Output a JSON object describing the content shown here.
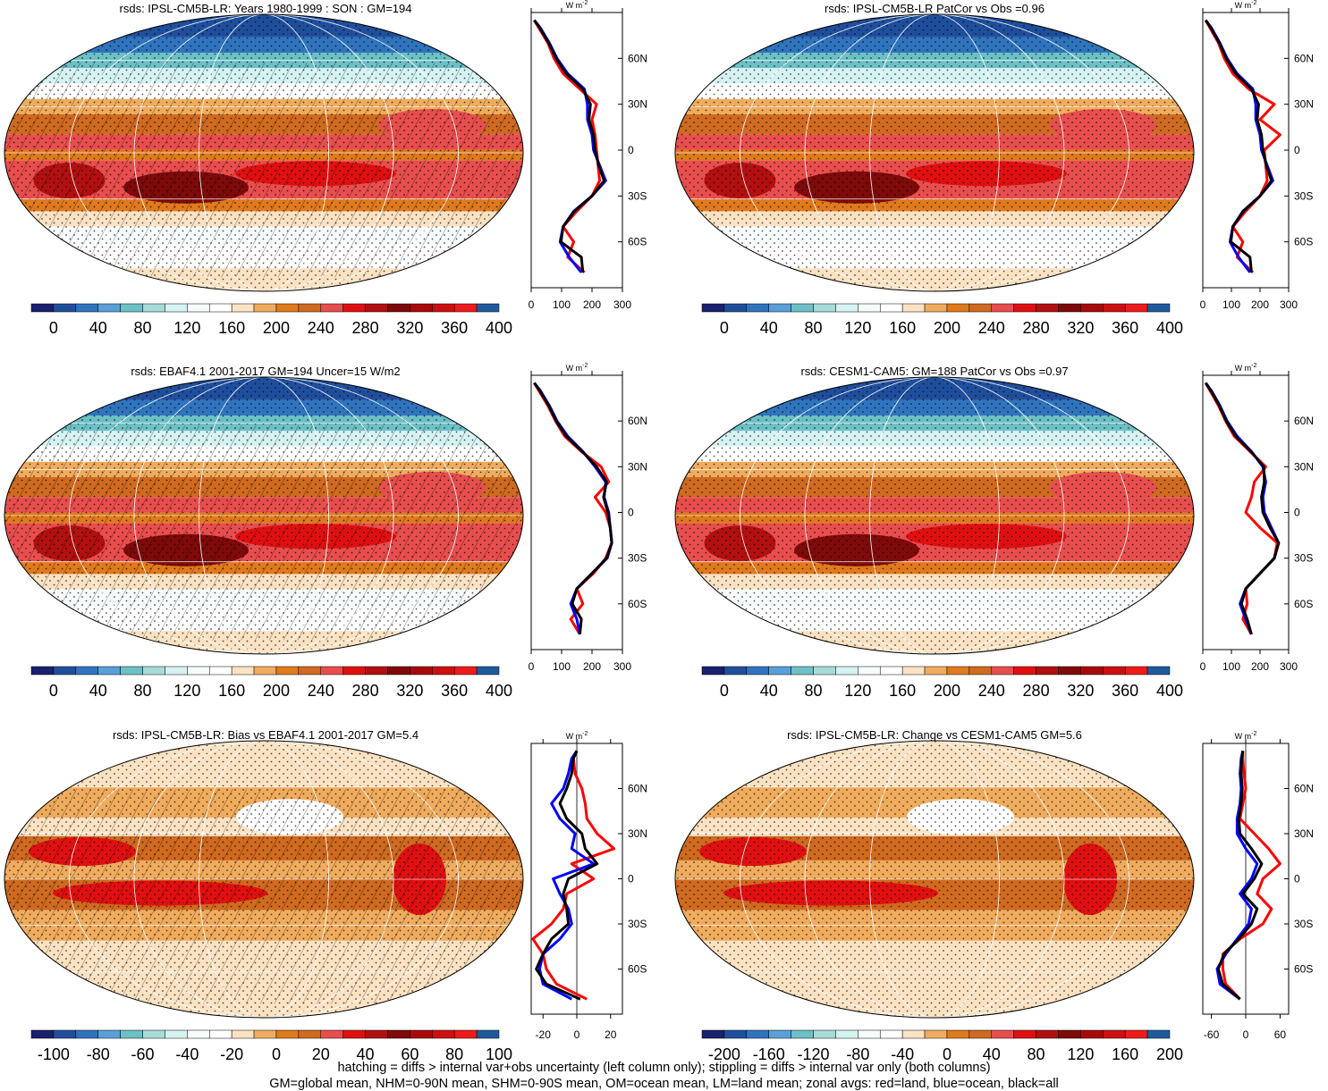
{
  "colors": {
    "abs_palette": [
      "#1a1f6e",
      "#1f4f9c",
      "#2f74bd",
      "#5a9fd8",
      "#6cc0c6",
      "#a6dcd8",
      "#d6f3f4",
      "#f7fbfb",
      "#ffffff",
      "#fbe2c2",
      "#f0ac5e",
      "#df7a1d",
      "#cf6a20",
      "#e84e4e",
      "#e01010",
      "#b21010",
      "#7e0a0a",
      "#a80a0a",
      "#cc1010",
      "#ee1b1b",
      "#1f5a9c"
    ],
    "diff_palette": [
      "#1a1f6e",
      "#1f4f9c",
      "#2f74bd",
      "#5a9fd8",
      "#6cc0c6",
      "#a6dcd8",
      "#d6f3f4",
      "#f7fbfb",
      "#ffffff",
      "#fbe2c2",
      "#f0ac5e",
      "#df7a1d",
      "#cf6a20",
      "#e84e4e",
      "#e01010",
      "#b21010",
      "#7e0a0a",
      "#a80a0a",
      "#cc1010",
      "#ee1b1b",
      "#1f5a9c"
    ],
    "land": "#ff0000",
    "ocean": "#0000ff",
    "all": "#000000"
  },
  "chart_data": [
    {
      "type": "heatmap",
      "panel": "top-left",
      "title": "rsds: IPSL-CM5B-LR: Years 1980-1999 : SON : GM=194",
      "colorbar": {
        "labels": [
          "0",
          "40",
          "80",
          "120",
          "160",
          "200",
          "240",
          "280",
          "320",
          "360",
          "400"
        ],
        "range": [
          0,
          400
        ]
      },
      "zonal": {
        "unit": "W m",
        "unit_exp": "-2",
        "xticks": [
          "0",
          "100",
          "200",
          "300"
        ],
        "xlim": [
          0,
          300
        ],
        "lat_ticks": [
          "60N",
          "30N",
          "0",
          "30S",
          "60S"
        ],
        "lat": [
          85,
          80,
          70,
          60,
          50,
          40,
          30,
          20,
          10,
          0,
          -10,
          -20,
          -30,
          -40,
          -50,
          -60,
          -70,
          -80
        ],
        "land": [
          10,
          25,
          55,
          75,
          105,
          160,
          215,
          200,
          210,
          215,
          220,
          225,
          200,
          150,
          105,
          140,
          120,
          175
        ],
        "ocean": [
          10,
          30,
          60,
          85,
          120,
          175,
          185,
          185,
          200,
          205,
          225,
          245,
          200,
          140,
          105,
          95,
          125,
          165
        ],
        "all": [
          10,
          28,
          58,
          82,
          115,
          170,
          195,
          190,
          205,
          210,
          222,
          240,
          200,
          142,
          105,
          98,
          165,
          170
        ]
      }
    },
    {
      "type": "heatmap",
      "panel": "top-right",
      "title": "rsds: IPSL-CM5B-LR PatCor vs Obs =0.96",
      "colorbar": {
        "labels": [
          "0",
          "40",
          "80",
          "120",
          "160",
          "200",
          "240",
          "280",
          "320",
          "360",
          "400"
        ],
        "range": [
          0,
          400
        ]
      },
      "zonal": {
        "unit": "W m",
        "unit_exp": "-2",
        "xticks": [
          "0",
          "100",
          "200",
          "300"
        ],
        "xlim": [
          0,
          300
        ],
        "lat_ticks": [
          "60N",
          "30N",
          "0",
          "30S",
          "60S"
        ],
        "lat": [
          85,
          80,
          70,
          60,
          50,
          40,
          30,
          20,
          10,
          0,
          -10,
          -20,
          -30,
          -40,
          -50,
          -60,
          -70,
          -80
        ],
        "land": [
          10,
          25,
          55,
          75,
          105,
          160,
          250,
          200,
          270,
          215,
          220,
          225,
          200,
          150,
          105,
          140,
          120,
          175
        ],
        "ocean": [
          10,
          30,
          60,
          85,
          120,
          175,
          185,
          185,
          200,
          205,
          225,
          245,
          200,
          140,
          105,
          95,
          125,
          165
        ],
        "all": [
          10,
          28,
          58,
          82,
          115,
          170,
          195,
          190,
          205,
          210,
          222,
          240,
          200,
          142,
          105,
          98,
          165,
          170
        ]
      }
    },
    {
      "type": "heatmap",
      "panel": "middle-left",
      "title": "rsds: EBAF4.1 2001-2017 GM=194 Uncer=15 W/m2",
      "colorbar": {
        "labels": [
          "0",
          "40",
          "80",
          "120",
          "160",
          "200",
          "240",
          "280",
          "320",
          "360",
          "400"
        ],
        "range": [
          0,
          400
        ]
      },
      "zonal": {
        "unit": "W m",
        "unit_exp": "-2",
        "xticks": [
          "0",
          "100",
          "200",
          "300"
        ],
        "xlim": [
          0,
          300
        ],
        "lat_ticks": [
          "60N",
          "30N",
          "0",
          "30S",
          "60S"
        ],
        "lat": [
          85,
          80,
          70,
          60,
          50,
          40,
          30,
          20,
          10,
          0,
          -10,
          -20,
          -30,
          -40,
          -50,
          -60,
          -70,
          -80
        ],
        "land": [
          10,
          25,
          55,
          80,
          110,
          165,
          230,
          255,
          210,
          245,
          260,
          265,
          245,
          205,
          150,
          170,
          130,
          160
        ],
        "ocean": [
          10,
          30,
          60,
          85,
          120,
          170,
          210,
          245,
          240,
          255,
          260,
          265,
          250,
          200,
          150,
          130,
          150,
          160
        ],
        "all": [
          10,
          28,
          58,
          82,
          115,
          168,
          215,
          248,
          238,
          252,
          260,
          265,
          248,
          200,
          150,
          135,
          165,
          160
        ]
      }
    },
    {
      "type": "heatmap",
      "panel": "middle-right",
      "title": "rsds: CESM1-CAM5: GM=188 PatCor vs Obs =0.97",
      "colorbar": {
        "labels": [
          "0",
          "40",
          "80",
          "120",
          "160",
          "200",
          "240",
          "280",
          "320",
          "360",
          "400"
        ],
        "range": [
          0,
          400
        ]
      },
      "zonal": {
        "unit": "W m",
        "unit_exp": "-2",
        "xticks": [
          "0",
          "100",
          "200",
          "300"
        ],
        "xlim": [
          0,
          300
        ],
        "lat_ticks": [
          "60N",
          "30N",
          "0",
          "30S",
          "60S"
        ],
        "lat": [
          85,
          80,
          70,
          60,
          50,
          40,
          30,
          20,
          10,
          0,
          -10,
          -20,
          -30,
          -40,
          -50,
          -60,
          -70,
          -80
        ],
        "land": [
          10,
          25,
          55,
          80,
          110,
          165,
          220,
          180,
          170,
          150,
          200,
          260,
          250,
          200,
          150,
          155,
          140,
          170
        ],
        "ocean": [
          10,
          30,
          60,
          85,
          120,
          170,
          210,
          220,
          210,
          215,
          240,
          265,
          250,
          200,
          150,
          130,
          150,
          170
        ],
        "all": [
          10,
          28,
          58,
          82,
          115,
          168,
          213,
          215,
          205,
          210,
          235,
          265,
          250,
          200,
          150,
          135,
          155,
          170
        ]
      }
    },
    {
      "type": "heatmap",
      "panel": "bottom-left",
      "title": "rsds: IPSL-CM5B-LR: Bias vs EBAF4.1 2001-2017  GM=5.4",
      "colorbar": {
        "labels": [
          "-100",
          "-80",
          "-60",
          "-40",
          "-20",
          "0",
          "20",
          "40",
          "60",
          "80",
          "100"
        ],
        "range": [
          -100,
          100
        ]
      },
      "zonal": {
        "unit": "W m",
        "unit_exp": "-2",
        "xticks": [
          "-20",
          "0",
          "20"
        ],
        "xlim": [
          -27,
          27
        ],
        "lat_ticks": [
          "60N",
          "30N",
          "0",
          "30S",
          "60S"
        ],
        "lat": [
          85,
          80,
          70,
          60,
          50,
          40,
          30,
          20,
          10,
          0,
          -10,
          -20,
          -30,
          -40,
          -50,
          -60,
          -70,
          -80
        ],
        "land": [
          0,
          -2,
          -1,
          3,
          5,
          6,
          12,
          22,
          -3,
          10,
          -6,
          -8,
          -15,
          -26,
          -20,
          -18,
          -12,
          6
        ],
        "ocean": [
          0,
          -3,
          -5,
          -8,
          -15,
          -10,
          -1,
          -3,
          10,
          -14,
          -10,
          -5,
          -3,
          -10,
          -20,
          -22,
          -20,
          -3
        ],
        "all": [
          0,
          -2,
          -3,
          -6,
          -10,
          -6,
          3,
          5,
          12,
          -5,
          -8,
          -6,
          -5,
          -15,
          -20,
          -24,
          -18,
          2
        ]
      }
    },
    {
      "type": "heatmap",
      "panel": "bottom-right",
      "title": "rsds: IPSL-CM5B-LR: Change vs CESM1-CAM5 GM=5.6",
      "colorbar": {
        "labels": [
          "-200",
          "-160",
          "-120",
          "-80",
          "-40",
          "0",
          "40",
          "80",
          "120",
          "160",
          "200"
        ],
        "range": [
          -200,
          200
        ]
      },
      "zonal": {
        "unit": "W m",
        "unit_exp": "-2",
        "xticks": [
          "-60",
          "0",
          "60"
        ],
        "xlim": [
          -75,
          75
        ],
        "lat_ticks": [
          "60N",
          "30N",
          "0",
          "30S",
          "60S"
        ],
        "lat": [
          85,
          80,
          70,
          60,
          50,
          40,
          30,
          20,
          10,
          0,
          -10,
          -20,
          -30,
          -40,
          -50,
          -60,
          -70,
          -80
        ],
        "land": [
          -5,
          -5,
          -3,
          0,
          -5,
          -10,
          15,
          40,
          60,
          30,
          20,
          45,
          30,
          -10,
          -40,
          -40,
          -35,
          -10
        ],
        "ocean": [
          -5,
          -8,
          -10,
          -8,
          -10,
          -15,
          -15,
          0,
          20,
          10,
          -10,
          10,
          5,
          -15,
          -35,
          -50,
          -45,
          -10
        ],
        "all": [
          -5,
          -7,
          -8,
          -6,
          -8,
          -12,
          -10,
          10,
          28,
          15,
          -5,
          20,
          10,
          -12,
          -38,
          -48,
          -40,
          -10
        ]
      }
    }
  ],
  "footer": {
    "line1": "hatching = diffs > internal var+obs uncertainty (left column only); stippling = diffs > internal var only (both columns)",
    "line2": "GM=global mean, NHM=0-90N mean, SHM=0-90S mean, OM=ocean mean, LM=land mean; zonal avgs: red=land, blue=ocean, black=all"
  }
}
